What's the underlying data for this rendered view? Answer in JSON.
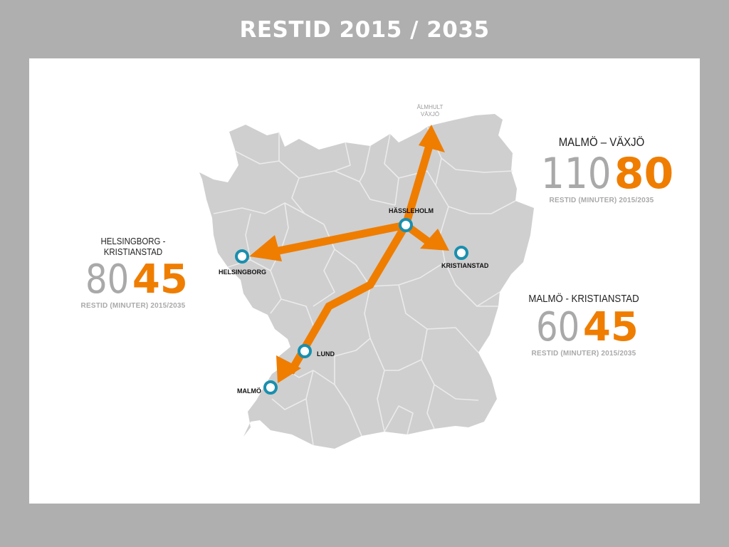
{
  "title": "RESTID 2015 / 2035",
  "colors": {
    "background": "#afafaf",
    "panel": "#ffffff",
    "land": "#cfcfcf",
    "borders": "#ebebeb",
    "arrow": "#ef7d00",
    "station_ring": "#1a8fae",
    "old_value": "#a9a9a9",
    "new_value": "#ef7d00"
  },
  "stations": {
    "hassleholm": "HÄSSLEHOLM",
    "helsingborg": "HELSINGBORG",
    "kristianstad": "KRISTIANSTAD",
    "lund": "LUND",
    "malmo": "MALMÖ"
  },
  "destination_label": [
    "ÄLMHULT",
    "VÄXJÖ"
  ],
  "travel_times": {
    "malmo_vaxjo": {
      "route": "MALMÖ – VÄXJÖ",
      "time_2015": "110",
      "time_2035": "80",
      "caption": "RESTID (MINUTER) 2015/2035"
    },
    "helsingborg_kristianstad": {
      "route": "HELSINGBORG - KRISTIANSTAD",
      "time_2015": "80",
      "time_2035": "45",
      "caption": "RESTID (MINUTER) 2015/2035"
    },
    "malmo_kristianstad": {
      "route": "MALMÖ - KRISTIANSTAD",
      "time_2015": "60",
      "time_2035": "45",
      "caption": "RESTID (MINUTER) 2015/2035"
    }
  }
}
